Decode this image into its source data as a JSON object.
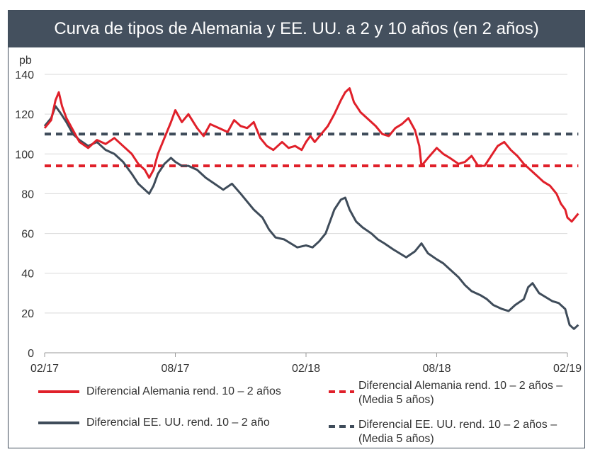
{
  "title": "Curva de tipos de Alemania y EE. UU. a 2 y 10 años (en 2 años)",
  "colors": {
    "title_bg": "#44505e",
    "germany": "#e0202a",
    "usa": "#3f4c5a",
    "grid": "#d9d9d9"
  },
  "chart_data": {
    "type": "line",
    "title": "Curva de tipos de Alemania y EE. UU. a 2 y 10 años (en 2 años)",
    "ylabel": "pb",
    "ylim": [
      0,
      140
    ],
    "yticks": [
      0,
      20,
      40,
      60,
      80,
      100,
      120,
      140
    ],
    "xlim": [
      0,
      24
    ],
    "xticks": [
      {
        "x": 0,
        "label": "02/17"
      },
      {
        "x": 6,
        "label": "08/17"
      },
      {
        "x": 12,
        "label": "02/18"
      },
      {
        "x": 18,
        "label": "08/18"
      },
      {
        "x": 24,
        "label": "02/19"
      }
    ],
    "grid": true,
    "legend_position": "bottom",
    "series": [
      {
        "name": "Diferencial Alemania rend. 10 – 2 años",
        "style": "solid",
        "color": "#e0202a",
        "points": [
          [
            0,
            113
          ],
          [
            0.3,
            117
          ],
          [
            0.5,
            127
          ],
          [
            0.65,
            131
          ],
          [
            0.8,
            124
          ],
          [
            1.0,
            118
          ],
          [
            1.3,
            112
          ],
          [
            1.6,
            106
          ],
          [
            2.0,
            103
          ],
          [
            2.4,
            107
          ],
          [
            2.8,
            105
          ],
          [
            3.2,
            108
          ],
          [
            3.6,
            104
          ],
          [
            4.0,
            100
          ],
          [
            4.3,
            95
          ],
          [
            4.6,
            92
          ],
          [
            4.8,
            88
          ],
          [
            5.0,
            92
          ],
          [
            5.2,
            100
          ],
          [
            5.5,
            108
          ],
          [
            5.8,
            116
          ],
          [
            6.0,
            122
          ],
          [
            6.3,
            116
          ],
          [
            6.6,
            120
          ],
          [
            7.0,
            113
          ],
          [
            7.3,
            109
          ],
          [
            7.6,
            115
          ],
          [
            8.0,
            113
          ],
          [
            8.4,
            111
          ],
          [
            8.7,
            117
          ],
          [
            9.0,
            114
          ],
          [
            9.3,
            113
          ],
          [
            9.6,
            116
          ],
          [
            9.9,
            108
          ],
          [
            10.2,
            104
          ],
          [
            10.5,
            102
          ],
          [
            10.9,
            106
          ],
          [
            11.2,
            103
          ],
          [
            11.5,
            104
          ],
          [
            11.8,
            102
          ],
          [
            12.0,
            106
          ],
          [
            12.2,
            109
          ],
          [
            12.4,
            106
          ],
          [
            12.7,
            110
          ],
          [
            13.0,
            114
          ],
          [
            13.3,
            120
          ],
          [
            13.6,
            127
          ],
          [
            13.8,
            131
          ],
          [
            14.0,
            133
          ],
          [
            14.2,
            126
          ],
          [
            14.5,
            121
          ],
          [
            14.8,
            118
          ],
          [
            15.2,
            114
          ],
          [
            15.5,
            110
          ],
          [
            15.8,
            109
          ],
          [
            16.1,
            113
          ],
          [
            16.4,
            115
          ],
          [
            16.7,
            118
          ],
          [
            17.0,
            112
          ],
          [
            17.2,
            104
          ],
          [
            17.3,
            94
          ],
          [
            17.6,
            98
          ],
          [
            18.0,
            103
          ],
          [
            18.3,
            100
          ],
          [
            18.6,
            98
          ],
          [
            19.0,
            95
          ],
          [
            19.3,
            96
          ],
          [
            19.6,
            99
          ],
          [
            19.9,
            94
          ],
          [
            20.2,
            94
          ],
          [
            20.5,
            99
          ],
          [
            20.8,
            104
          ],
          [
            21.1,
            106
          ],
          [
            21.4,
            102
          ],
          [
            21.7,
            99
          ],
          [
            22.0,
            95
          ],
          [
            22.3,
            92
          ],
          [
            22.6,
            89
          ],
          [
            22.9,
            86
          ],
          [
            23.2,
            84
          ],
          [
            23.5,
            80
          ],
          [
            23.7,
            75
          ],
          [
            23.9,
            72
          ],
          [
            24.0,
            68
          ],
          [
            24.2,
            66
          ],
          [
            24.5,
            70
          ]
        ]
      },
      {
        "name": "Diferencial Alemania rend. 10 – 2 años – (Media 5 años)",
        "style": "dashed",
        "color": "#e0202a",
        "points": [
          [
            0,
            94
          ],
          [
            24.5,
            94
          ]
        ]
      },
      {
        "name": "Diferencial EE. UU. rend. 10 – 2 año",
        "style": "solid",
        "color": "#3f4c5a",
        "points": [
          [
            0,
            114
          ],
          [
            0.3,
            118
          ],
          [
            0.5,
            124
          ],
          [
            0.7,
            121
          ],
          [
            1.0,
            116
          ],
          [
            1.3,
            110
          ],
          [
            1.6,
            107
          ],
          [
            2.0,
            104
          ],
          [
            2.4,
            106
          ],
          [
            2.8,
            102
          ],
          [
            3.2,
            100
          ],
          [
            3.6,
            96
          ],
          [
            4.0,
            90
          ],
          [
            4.3,
            85
          ],
          [
            4.6,
            82
          ],
          [
            4.8,
            80
          ],
          [
            5.0,
            84
          ],
          [
            5.2,
            90
          ],
          [
            5.5,
            95
          ],
          [
            5.8,
            98
          ],
          [
            6.0,
            96
          ],
          [
            6.3,
            94
          ],
          [
            6.6,
            94
          ],
          [
            7.0,
            92
          ],
          [
            7.4,
            88
          ],
          [
            7.8,
            85
          ],
          [
            8.2,
            82
          ],
          [
            8.6,
            85
          ],
          [
            9.0,
            80
          ],
          [
            9.3,
            76
          ],
          [
            9.6,
            72
          ],
          [
            10.0,
            68
          ],
          [
            10.3,
            62
          ],
          [
            10.6,
            58
          ],
          [
            11.0,
            57
          ],
          [
            11.3,
            55
          ],
          [
            11.6,
            53
          ],
          [
            12.0,
            54
          ],
          [
            12.3,
            53
          ],
          [
            12.6,
            56
          ],
          [
            12.9,
            60
          ],
          [
            13.1,
            66
          ],
          [
            13.3,
            72
          ],
          [
            13.6,
            77
          ],
          [
            13.8,
            78
          ],
          [
            14.0,
            72
          ],
          [
            14.3,
            66
          ],
          [
            14.6,
            63
          ],
          [
            15.0,
            60
          ],
          [
            15.3,
            57
          ],
          [
            15.6,
            55
          ],
          [
            16.0,
            52
          ],
          [
            16.3,
            50
          ],
          [
            16.6,
            48
          ],
          [
            17.0,
            51
          ],
          [
            17.3,
            55
          ],
          [
            17.6,
            50
          ],
          [
            18.0,
            47
          ],
          [
            18.3,
            45
          ],
          [
            18.6,
            42
          ],
          [
            19.0,
            38
          ],
          [
            19.3,
            34
          ],
          [
            19.6,
            31
          ],
          [
            20.0,
            29
          ],
          [
            20.3,
            27
          ],
          [
            20.6,
            24
          ],
          [
            21.0,
            22
          ],
          [
            21.3,
            21
          ],
          [
            21.6,
            24
          ],
          [
            22.0,
            27
          ],
          [
            22.2,
            33
          ],
          [
            22.4,
            35
          ],
          [
            22.7,
            30
          ],
          [
            23.0,
            28
          ],
          [
            23.3,
            26
          ],
          [
            23.6,
            25
          ],
          [
            23.9,
            22
          ],
          [
            24.0,
            18
          ],
          [
            24.1,
            14
          ],
          [
            24.3,
            12
          ],
          [
            24.5,
            14
          ]
        ]
      },
      {
        "name": "Diferencial EE. UU. rend. 10 – 2 años – (Media 5 años)",
        "style": "dashed",
        "color": "#3f4c5a",
        "points": [
          [
            0,
            110
          ],
          [
            24.5,
            110
          ]
        ]
      }
    ]
  }
}
